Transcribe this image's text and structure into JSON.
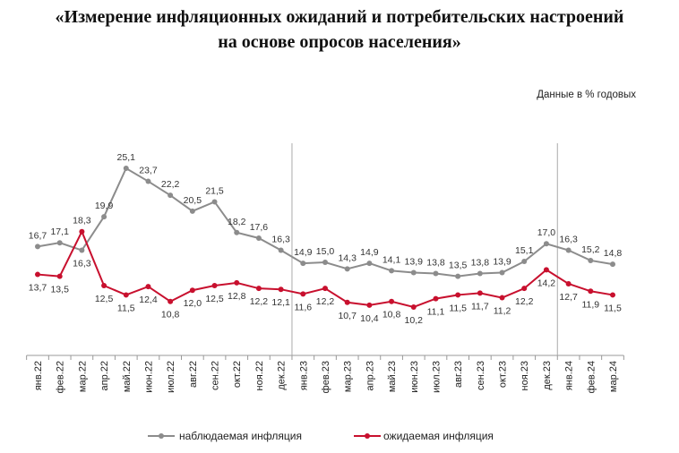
{
  "title_line1": "«Измерение инфляционных ожиданий и потребительских настроений",
  "title_line2": "на основе опросов населения»",
  "units": "Данные в % годовых",
  "chart_data": {
    "type": "line",
    "title": "«Измерение инфляционных ожиданий и потребительских настроений на основе опросов населения»",
    "categories": [
      "янв.22",
      "фев.22",
      "мар.22",
      "апр.22",
      "май.22",
      "июн.22",
      "июл.22",
      "авг.22",
      "сен.22",
      "окт.22",
      "ноя.22",
      "дек.22",
      "янв.23",
      "фев.23",
      "мар.23",
      "апр.23",
      "май.23",
      "июн.23",
      "июл.23",
      "авг.23",
      "сен.23",
      "окт.23",
      "ноя.23",
      "дек.23",
      "янв.24",
      "фев.24",
      "мар.24"
    ],
    "series": [
      {
        "name": "наблюдаемая инфляция",
        "color": "#8c8c8c",
        "values": [
          16.7,
          17.1,
          16.3,
          19.9,
          25.1,
          23.7,
          22.2,
          20.5,
          21.5,
          18.2,
          17.6,
          16.3,
          14.9,
          15.0,
          14.3,
          14.9,
          14.1,
          13.9,
          13.8,
          13.5,
          13.8,
          13.9,
          15.1,
          17.0,
          16.3,
          15.2,
          14.8
        ],
        "labels": [
          "16,7",
          "17,1",
          "16,3",
          "19,9",
          "25,1",
          "23,7",
          "22,2",
          "20,5",
          "21,5",
          "18,2",
          "17,6",
          "16,3",
          "14,9",
          "15,0",
          "14,3",
          "14,9",
          "14,1",
          "13,9",
          "13,8",
          "13,5",
          "13,8",
          "13,9",
          "15,1",
          "17,0",
          "16,3",
          "15,2",
          "14,8"
        ]
      },
      {
        "name": "ожидаемая инфляция",
        "color": "#c8102e",
        "values": [
          13.7,
          13.5,
          18.3,
          12.5,
          11.5,
          12.4,
          10.8,
          12.0,
          12.5,
          12.8,
          12.2,
          12.1,
          11.6,
          12.2,
          10.7,
          10.4,
          10.8,
          10.2,
          11.1,
          11.5,
          11.7,
          11.2,
          12.2,
          14.2,
          12.7,
          11.9,
          11.5
        ],
        "labels": [
          "13,7",
          "13,5",
          "18,3",
          "12,5",
          "11,5",
          "12,4",
          "10,8",
          "12,0",
          "12,5",
          "12,8",
          "12,2",
          "12,1",
          "11,6",
          "12,2",
          "10,7",
          "10,4",
          "10,8",
          "10,2",
          "11,1",
          "11,5",
          "11,7",
          "11,2",
          "12,2",
          "14,2",
          "12,7",
          "11,9",
          "11,5"
        ]
      }
    ],
    "ylim": [
      5,
      27
    ],
    "grid": false,
    "year_separators_after": [
      "дек.22",
      "дек.23"
    ],
    "legend": "bottom",
    "xlabel": "",
    "ylabel": ""
  }
}
